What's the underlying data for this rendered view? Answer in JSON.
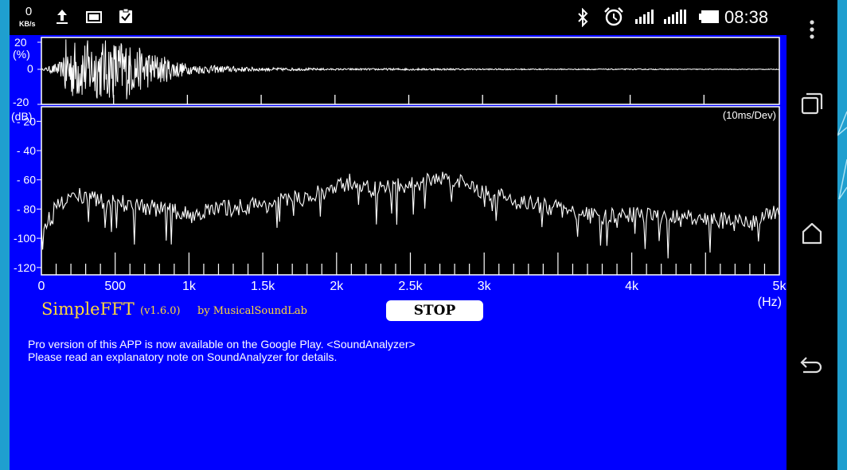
{
  "status_bar": {
    "net_speed_value": "0",
    "net_speed_unit": "KB/s",
    "time": "08:38",
    "icons": [
      "upload-icon",
      "screenshot-icon",
      "clipboard-check-icon",
      "bluetooth-icon",
      "alarm-icon",
      "signal-icon",
      "signal-icon",
      "battery-icon"
    ]
  },
  "navigation_bar": {
    "icons": [
      "overflow-menu-icon",
      "recent-apps-icon",
      "home-icon",
      "back-icon"
    ]
  },
  "waveform_panel": {
    "y_unit": "(%)",
    "y_ticks": [
      "20",
      "0",
      "-20"
    ]
  },
  "spectrum_panel": {
    "y_unit": "(dB)",
    "time_scale": "(10ms/Dev)",
    "y_ticks": [
      "- 20",
      "- 40",
      "- 60",
      "- 80",
      "-100",
      "-120"
    ],
    "x_ticks": [
      "0",
      "500",
      "1k",
      "1.5k",
      "2k",
      "2.5k",
      "3k",
      "4k",
      "5k"
    ],
    "x_unit": "(Hz)"
  },
  "app": {
    "name": "SimpleFFT",
    "version": "(v1.6.0)",
    "by": "by MusicalSoundLab",
    "stop_label": "STOP",
    "info_line_1": "Pro version of this APP is now available on the Google Play. <SoundAnalyzer>",
    "info_line_2": "Please read an explanatory note on SoundAnalyzer for details."
  },
  "colors": {
    "app_background": "#0000ff",
    "plot_background": "#000000",
    "trace": "#ffffff",
    "title_text": "#ffd93a",
    "slide_background": "#1f9fcf"
  },
  "chart_data": [
    {
      "type": "line",
      "ylabel": "(%)",
      "ylim": [
        -20,
        20
      ],
      "yticks": [
        20,
        0,
        -20
      ],
      "x": [
        0,
        10,
        20,
        30,
        40,
        50,
        60,
        70,
        80,
        90,
        100
      ],
      "y": [
        0,
        18,
        3,
        1,
        0.5,
        0.6,
        0.4,
        0.3,
        0.3,
        0.2,
        0.2
      ]
    },
    {
      "type": "line",
      "ylabel": "(dB)",
      "xlabel": "(Hz)",
      "xlim": [
        0,
        5000
      ],
      "ylim": [
        -125,
        -10
      ],
      "yticks": [
        -20,
        -40,
        -60,
        -80,
        -100,
        -120
      ],
      "xticks": [
        0,
        500,
        1000,
        1500,
        2000,
        2500,
        3000,
        4000,
        5000
      ],
      "xticklabels": [
        "0",
        "500",
        "1k",
        "1.5k",
        "2k",
        "2.5k",
        "3k",
        "4k",
        "5k"
      ],
      "x": [
        0,
        100,
        250,
        400,
        600,
        800,
        1000,
        1200,
        1500,
        1800,
        2000,
        2100,
        2250,
        2400,
        2600,
        2700,
        2800,
        3000,
        3200,
        3500,
        3800,
        4000,
        4300,
        4600,
        4800,
        5000
      ],
      "y": [
        -98,
        -78,
        -70,
        -75,
        -76,
        -80,
        -84,
        -80,
        -77,
        -72,
        -66,
        -61,
        -67,
        -65,
        -62,
        -58,
        -61,
        -68,
        -74,
        -80,
        -86,
        -84,
        -86,
        -88,
        -90,
        -82
      ]
    }
  ]
}
